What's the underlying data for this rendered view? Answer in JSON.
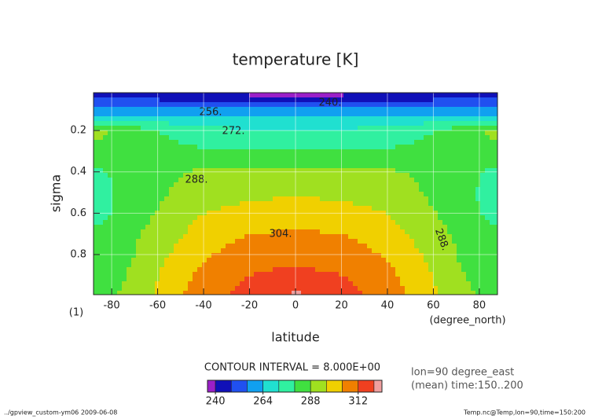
{
  "chart_data": {
    "type": "contour",
    "title": "temperature [K]",
    "x_label": "latitude",
    "y_label": "sigma",
    "x_unit": "(degree_north)",
    "y_unit": "(1)",
    "x": [
      -85,
      -70,
      -55,
      -40,
      -20,
      0,
      20,
      40,
      55,
      70,
      85
    ],
    "y": [
      0.03,
      0.07,
      0.12,
      0.2,
      0.3,
      0.4,
      0.5,
      0.6,
      0.7,
      0.8,
      0.9,
      0.99
    ],
    "values": [
      [
        246,
        245,
        244,
        242,
        240,
        238,
        240,
        242,
        244,
        245,
        246
      ],
      [
        252,
        252,
        251,
        250,
        249,
        248,
        249,
        250,
        251,
        252,
        252
      ],
      [
        262,
        263,
        264,
        264,
        264,
        264,
        264,
        264,
        264,
        263,
        262
      ],
      [
        289,
        284,
        278,
        274,
        273,
        272,
        273,
        274,
        278,
        284,
        289
      ],
      [
        287,
        285,
        283,
        281,
        280,
        280,
        280,
        281,
        283,
        285,
        287
      ],
      [
        279,
        284,
        287,
        289,
        290,
        290,
        290,
        289,
        287,
        284,
        279
      ],
      [
        277,
        284,
        288,
        292,
        294,
        295,
        294,
        292,
        288,
        284,
        277
      ],
      [
        278,
        285,
        290,
        296,
        299,
        300,
        299,
        296,
        290,
        285,
        278
      ],
      [
        281,
        287,
        293,
        300,
        304,
        305,
        304,
        300,
        293,
        287,
        281
      ],
      [
        283,
        288,
        296,
        303,
        308,
        310,
        308,
        303,
        296,
        288,
        283
      ],
      [
        285,
        289,
        299,
        306,
        312,
        314,
        312,
        306,
        299,
        289,
        285
      ],
      [
        286,
        290,
        301,
        308,
        315,
        321,
        316,
        308,
        301,
        290,
        286
      ]
    ],
    "xlim": [
      -87.9,
      87.9
    ],
    "ylim": [
      0.994,
      0.017
    ],
    "xticks": [
      -80,
      -60,
      -40,
      -20,
      0,
      20,
      40,
      60,
      80
    ],
    "yticks": [
      0.2,
      0.4,
      0.6,
      0.8
    ],
    "grid": true,
    "levels": [
      232,
      240,
      248,
      256,
      264,
      272,
      280,
      288,
      296,
      304,
      312,
      320,
      328
    ],
    "colors": [
      "#9b1fc8",
      "#1010b8",
      "#2050f0",
      "#10a0f0",
      "#20e0d0",
      "#30f0a0",
      "#40e040",
      "#a0e020",
      "#f0d000",
      "#f08000",
      "#f04020",
      "#f0a0a0"
    ],
    "contour_labels": [
      "240.",
      "256.",
      "272.",
      "288.",
      "304.",
      "288."
    ],
    "contour_interval": "CONTOUR INTERVAL = 8.000E+00",
    "colorbar_lim": [
      236,
      324
    ],
    "colorbar_ticks": [
      240,
      264,
      288,
      312
    ],
    "notes": [
      "lon=90 degree_east",
      "(mean) time:150..200"
    ],
    "footer_left": "../gpview_custom-ym06  2009-06-08",
    "footer_right": "Temp.nc@Temp,lon=90,time=150:200"
  }
}
